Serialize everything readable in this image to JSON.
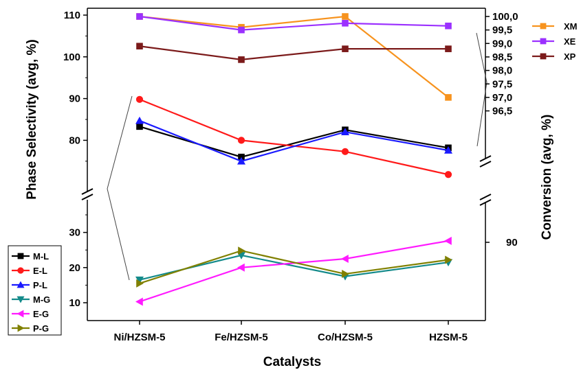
{
  "chart_data": {
    "type": "line",
    "xlabel": "Catalysts",
    "categories": [
      "Ni/HZSM-5",
      "Fe/HZSM-5",
      "Co/HZSM-5",
      "HZSM-5"
    ],
    "left_axis": {
      "label": "Phase Selectivity (avg, %)",
      "scale": "broken",
      "upper_range": [
        70,
        110
      ],
      "lower_range": [
        5,
        38
      ],
      "upper_ticks": [
        80,
        90,
        100,
        110
      ],
      "lower_ticks": [
        10,
        20,
        30
      ]
    },
    "right_axis": {
      "label": "Conversion (avg, %)",
      "scale": "broken",
      "upper_range": [
        95.9,
        100
      ],
      "upper_ticks": [
        "96,5",
        "97,0",
        "97,5",
        "98,0",
        "98,5",
        "99,0",
        "99,5",
        "100,0"
      ],
      "lower_ticks": [
        "90"
      ]
    },
    "series": [
      {
        "name": "XM",
        "axis": "right",
        "color": "#F7931E",
        "marker": "square",
        "values": [
          100.0,
          99.6,
          100.0,
          97.0
        ]
      },
      {
        "name": "XE",
        "axis": "right",
        "color": "#9B30FF",
        "marker": "square",
        "values": [
          100.0,
          99.5,
          99.75,
          99.65
        ]
      },
      {
        "name": "XP",
        "axis": "right",
        "color": "#7B1A1A",
        "marker": "square",
        "values": [
          98.9,
          98.4,
          98.8,
          98.8
        ]
      },
      {
        "name": "M-L",
        "axis": "left",
        "color": "#000000",
        "marker": "square",
        "values": [
          83.3,
          76.0,
          82.5,
          78.2
        ]
      },
      {
        "name": "E-L",
        "axis": "left",
        "color": "#FF1A1A",
        "marker": "circle",
        "values": [
          89.8,
          80.0,
          77.3,
          71.8
        ]
      },
      {
        "name": "P-L",
        "axis": "left",
        "color": "#1A1AFF",
        "marker": "triangle-up",
        "values": [
          84.7,
          75.0,
          82.0,
          77.6
        ]
      },
      {
        "name": "M-G",
        "axis": "left",
        "color": "#138A8A",
        "marker": "triangle-down",
        "values": [
          16.5,
          23.5,
          17.5,
          21.5
        ]
      },
      {
        "name": "E-G",
        "axis": "left",
        "color": "#FF1AFF",
        "marker": "triangle-left",
        "values": [
          10.3,
          20.0,
          22.5,
          27.6
        ]
      },
      {
        "name": "P-G",
        "axis": "left",
        "color": "#808000",
        "marker": "triangle-right",
        "values": [
          15.5,
          24.8,
          18.2,
          22.2
        ]
      }
    ],
    "legend_left": [
      "M-L",
      "E-L",
      "P-L",
      "M-G",
      "E-G",
      "P-G"
    ],
    "legend_right": [
      "XM",
      "XE",
      "XP"
    ],
    "grid": false
  }
}
